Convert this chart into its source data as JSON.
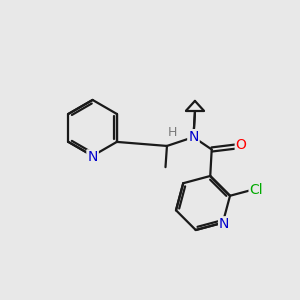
{
  "background_color": "#e8e8e8",
  "atom_colors": {
    "N": "#0000cc",
    "O": "#ff0000",
    "Cl": "#00aa00",
    "H": "#7a7a7a",
    "C": "#000000"
  },
  "bond_color": "#1a1a1a",
  "bond_width": 1.6,
  "figsize": [
    3.0,
    3.0
  ],
  "dpi": 100,
  "xlim": [
    0,
    10
  ],
  "ylim": [
    0,
    10
  ]
}
